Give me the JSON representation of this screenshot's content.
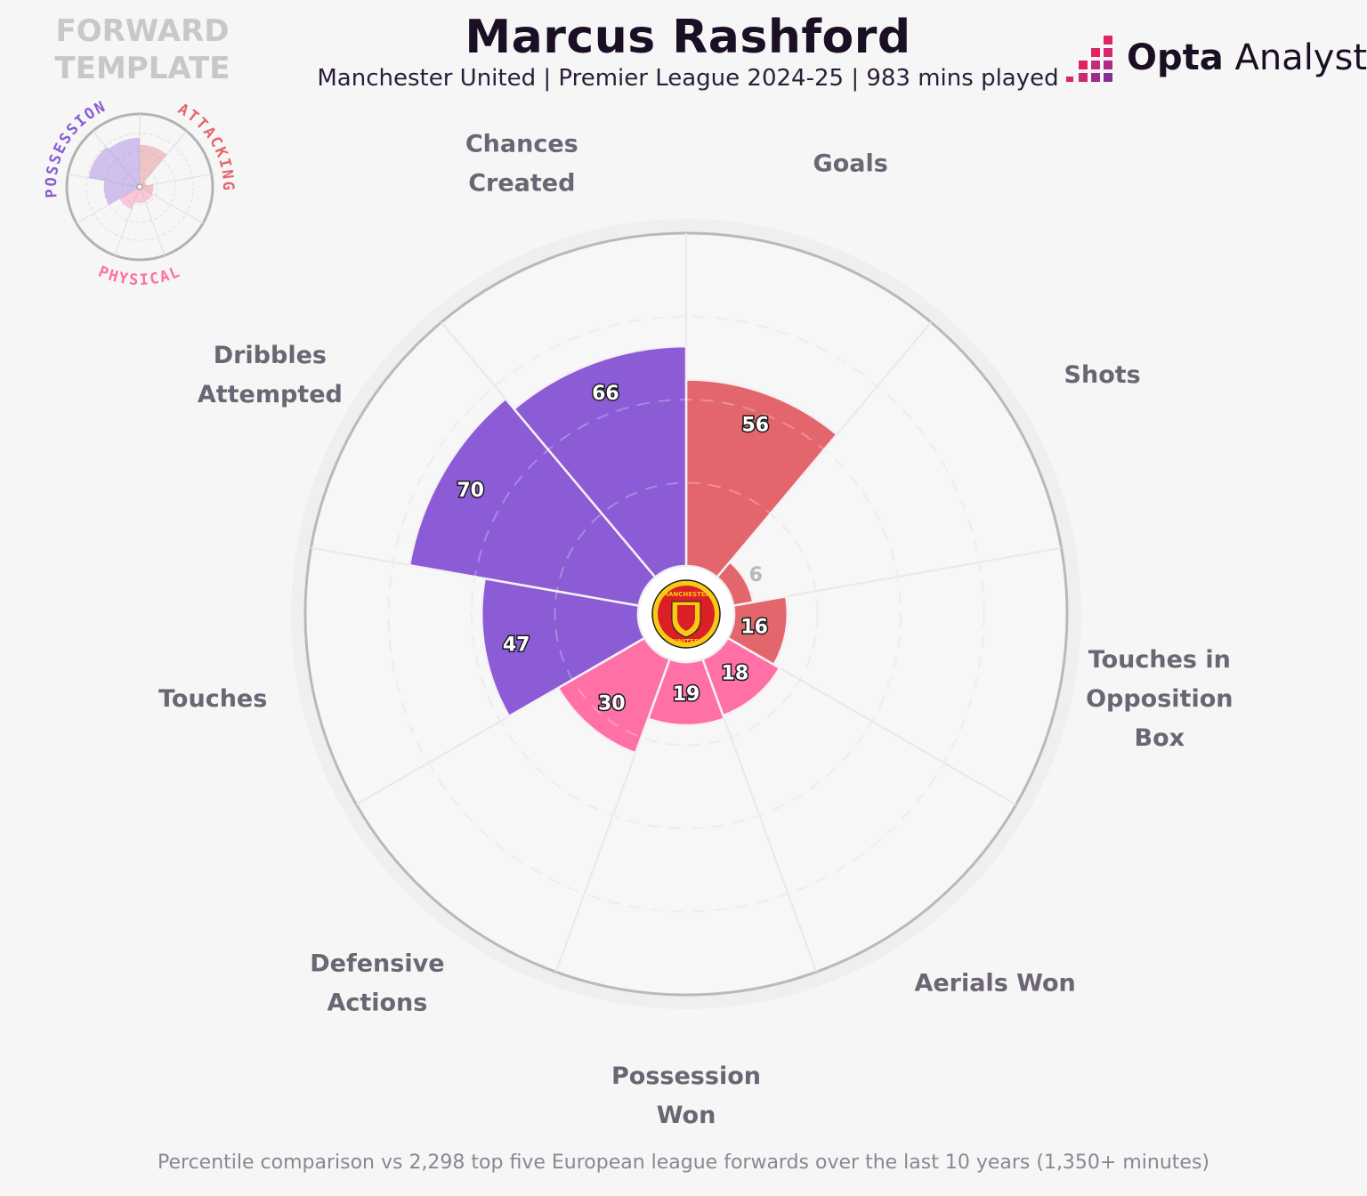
{
  "header": {
    "title": "Marcus Rashford",
    "subtitle": "Manchester United | Premier League 2024-25 | 983 mins played"
  },
  "template": {
    "title_line1": "FORWARD",
    "title_line2": "TEMPLATE",
    "groups": [
      {
        "name": "POSSESSION",
        "color": "#8b5cd6"
      },
      {
        "name": "ATTACKING",
        "color": "#e3666c"
      },
      {
        "name": "PHYSICAL",
        "color": "#ff70a6"
      }
    ]
  },
  "logo": {
    "brand_bold": "Opta",
    "brand_light": " Analyst"
  },
  "badge": {
    "name": "Manchester United crest",
    "text_top": "MANCHESTER",
    "text_bottom": "UNITED"
  },
  "footer": {
    "note": "Percentile comparison vs 2,298 top five European league forwards over the last 10 years (1,350+ minutes)"
  },
  "chart_data": {
    "type": "polar-bar",
    "value_range": [
      0,
      100
    ],
    "metrics": [
      {
        "label_lines": [
          "Goals"
        ],
        "value": 56,
        "group": "attacking",
        "color": "#e3666c"
      },
      {
        "label_lines": [
          "Shots"
        ],
        "value": 6,
        "group": "attacking",
        "color": "#e3666c"
      },
      {
        "label_lines": [
          "Touches in",
          "Opposition",
          "Box"
        ],
        "value": 16,
        "group": "attacking",
        "color": "#e3666c"
      },
      {
        "label_lines": [
          "Aerials Won"
        ],
        "value": 18,
        "group": "physical",
        "color": "#ff70a6"
      },
      {
        "label_lines": [
          "Possession",
          "Won"
        ],
        "value": 19,
        "group": "physical",
        "color": "#ff70a6"
      },
      {
        "label_lines": [
          "Defensive",
          "Actions"
        ],
        "value": 30,
        "group": "physical",
        "color": "#ff70a6"
      },
      {
        "label_lines": [
          "Touches"
        ],
        "value": 47,
        "group": "possession",
        "color": "#8b5cd6"
      },
      {
        "label_lines": [
          "Dribbles",
          "Attempted"
        ],
        "value": 70,
        "group": "possession",
        "color": "#8b5cd6"
      },
      {
        "label_lines": [
          "Chances",
          "Created"
        ],
        "value": 66,
        "group": "possession",
        "color": "#8b5cd6"
      }
    ]
  }
}
